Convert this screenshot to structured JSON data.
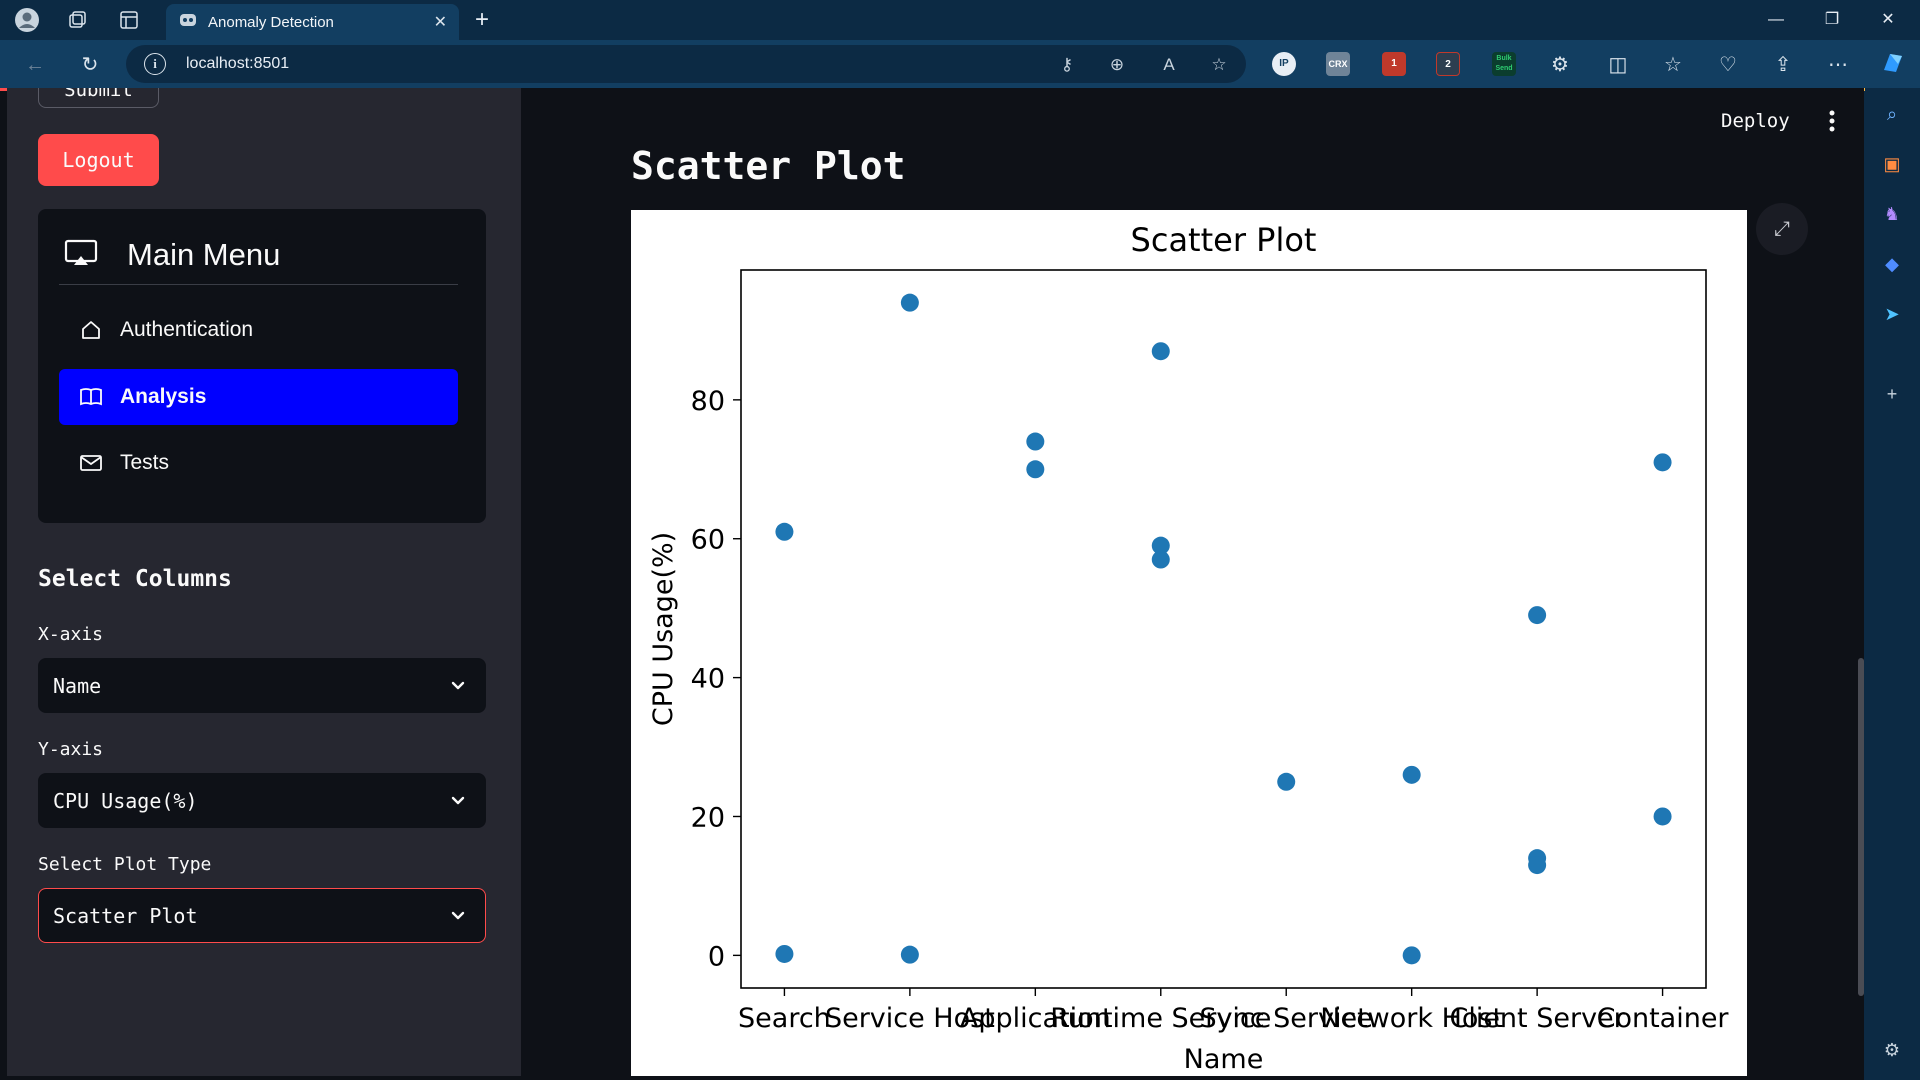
{
  "browser": {
    "tab_title": "Anomaly Detection",
    "url": "localhost:8501",
    "extensions": [
      "IP",
      "CRX",
      "1",
      "2",
      "Bulk Send"
    ]
  },
  "sidebar": {
    "submit_label": "Submit",
    "logout_label": "Logout",
    "menu": {
      "title": "Main Menu",
      "items": [
        {
          "label": "Authentication",
          "icon": "house-icon"
        },
        {
          "label": "Analysis",
          "icon": "book-icon",
          "active": true
        },
        {
          "label": "Tests",
          "icon": "envelope-icon"
        }
      ]
    },
    "select_columns_heading": "Select Columns",
    "x_axis_label": "X-axis",
    "x_axis_value": "Name",
    "y_axis_label": "Y-axis",
    "y_axis_value": "CPU Usage(%)",
    "plot_type_label": "Select Plot Type",
    "plot_type_value": "Scatter Plot"
  },
  "header": {
    "deploy_label": "Deploy"
  },
  "main": {
    "page_title": "Scatter Plot"
  },
  "colors": {
    "accent": "#ff4b4b",
    "menu_active": "#0000ff",
    "point": "#1f77b4"
  },
  "chart_data": {
    "type": "scatter",
    "title": "Scatter Plot",
    "xlabel": "Name",
    "ylabel": "CPU Usage(%)",
    "categories": [
      "Search",
      "Service Host",
      "Application",
      "Runtime Service",
      "Sync Service",
      "Network Host",
      "Client Server",
      "Container"
    ],
    "x": [
      "Search",
      "Search",
      "Service Host",
      "Service Host",
      "Application",
      "Application",
      "Runtime Service",
      "Runtime Service",
      "Runtime Service",
      "Sync Service",
      "Network Host",
      "Network Host",
      "Client Server",
      "Client Server",
      "Client Server",
      "Container",
      "Container"
    ],
    "y": [
      61,
      0.2,
      94,
      0.1,
      74,
      70,
      87,
      59,
      57,
      25,
      26,
      0,
      49,
      14,
      13,
      71,
      20
    ],
    "yticks": [
      0,
      20,
      40,
      60,
      80
    ],
    "ylim": [
      -4.7,
      98.7
    ],
    "grid": false,
    "legend": false
  }
}
